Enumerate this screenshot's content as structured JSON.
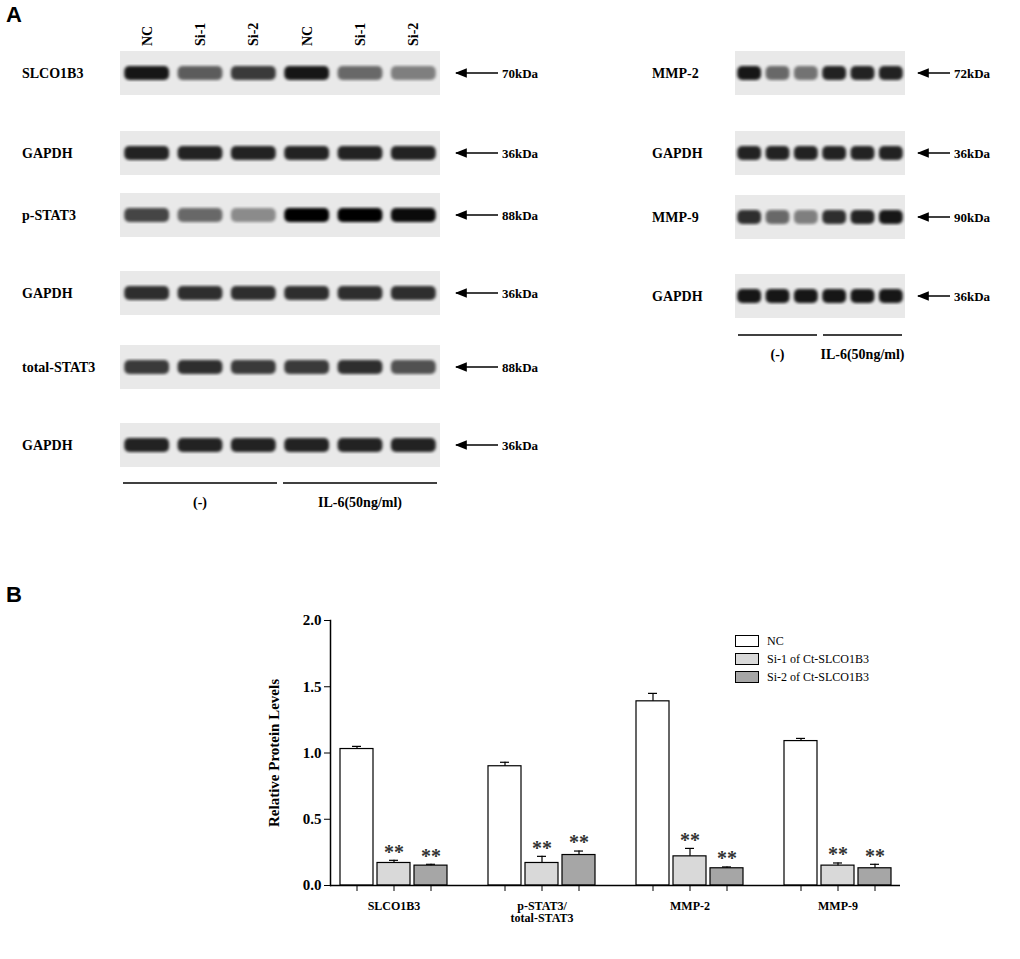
{
  "panel_labels": [
    "A",
    "B"
  ],
  "blots": {
    "lanes": [
      "NC",
      "Si-1",
      "Si-2",
      "NC",
      "Si-1",
      "Si-2"
    ],
    "groups": [
      "(-)",
      "IL-6(50ng/ml)"
    ],
    "left": [
      {
        "name": "SLCO1B3",
        "size": "70kDa",
        "intensity": [
          0.9,
          0.6,
          0.75,
          0.9,
          0.55,
          0.45
        ]
      },
      {
        "name": "GAPDH",
        "size": "36kDa",
        "intensity": [
          0.85,
          0.85,
          0.85,
          0.85,
          0.85,
          0.85
        ]
      },
      {
        "name": "p-STAT3",
        "size": "88kDa",
        "intensity": [
          0.7,
          0.55,
          0.4,
          1,
          1,
          0.95
        ]
      },
      {
        "name": "GAPDH",
        "size": "36kDa",
        "intensity": [
          0.8,
          0.8,
          0.8,
          0.8,
          0.8,
          0.8
        ]
      },
      {
        "name": "total-STAT3",
        "size": "88kDa",
        "intensity": [
          0.75,
          0.8,
          0.75,
          0.75,
          0.8,
          0.65
        ]
      },
      {
        "name": "GAPDH",
        "size": "36kDa",
        "intensity": [
          0.85,
          0.85,
          0.85,
          0.85,
          0.85,
          0.85
        ]
      }
    ],
    "right": [
      {
        "name": "MMP-2",
        "size": "72kDa",
        "intensity": [
          0.9,
          0.55,
          0.5,
          0.85,
          0.85,
          0.85
        ]
      },
      {
        "name": "GAPDH",
        "size": "36kDa",
        "intensity": [
          0.85,
          0.85,
          0.85,
          0.85,
          0.85,
          0.85
        ]
      },
      {
        "name": "MMP-9",
        "size": "90kDa",
        "intensity": [
          0.8,
          0.55,
          0.45,
          0.8,
          0.85,
          0.9
        ]
      },
      {
        "name": "GAPDH",
        "size": "36kDa",
        "intensity": [
          0.9,
          0.9,
          0.9,
          0.9,
          0.9,
          0.9
        ]
      }
    ]
  },
  "chart_data": {
    "type": "bar",
    "ylabel": "Relative Protein Levels",
    "categories": [
      "SLCO1B3",
      "p-STAT3/\ntotal-STAT3",
      "MMP-2",
      "MMP-9"
    ],
    "series": [
      {
        "name": "NC",
        "color": "#ffffff",
        "values": [
          1.03,
          0.9,
          1.39,
          1.09
        ],
        "errors": [
          0.02,
          0.03,
          0.06,
          0.02
        ],
        "significance": [
          null,
          null,
          null,
          null
        ]
      },
      {
        "name": "Si-1 of Ct-SLCO1B3",
        "color": "#d9d9d9",
        "values": [
          0.17,
          0.17,
          0.22,
          0.15
        ],
        "errors": [
          0.02,
          0.05,
          0.06,
          0.02
        ],
        "significance": [
          "**",
          "**",
          "**",
          "**"
        ]
      },
      {
        "name": "Si-2 of Ct-SLCO1B3",
        "color": "#a6a6a6",
        "values": [
          0.15,
          0.23,
          0.13,
          0.13
        ],
        "errors": [
          0.01,
          0.03,
          0.01,
          0.03
        ],
        "significance": [
          "**",
          "**",
          "**",
          "**"
        ]
      }
    ],
    "ylim": [
      0,
      2
    ],
    "yticks": [
      {
        "value": 0,
        "label": "0.0"
      },
      0.5,
      {
        "value": 1,
        "label": "1.0"
      },
      1.5,
      {
        "value": 2,
        "label": "2.0"
      }
    ],
    "grid": false,
    "legend": "top-right"
  }
}
